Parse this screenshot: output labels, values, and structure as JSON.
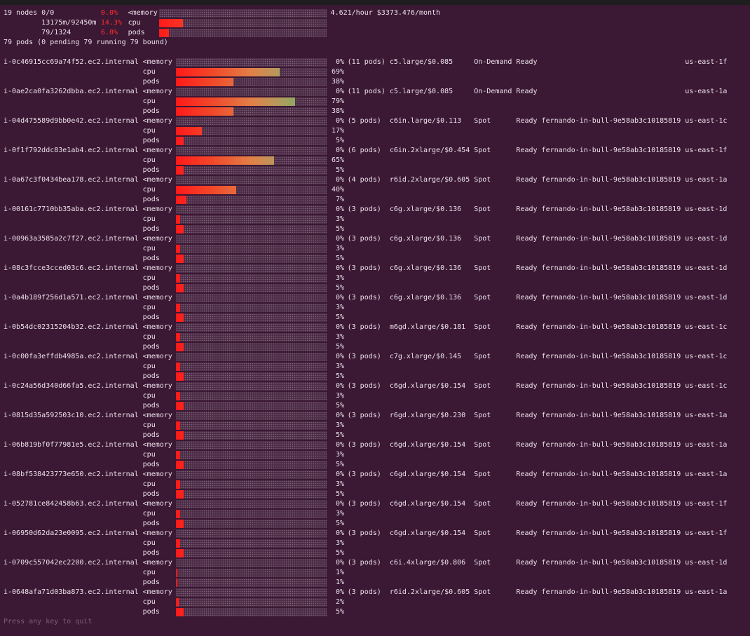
{
  "summary": {
    "nodes": "19 nodes 0/0",
    "memory_pct": "0.0%",
    "memory_label": "<memory",
    "cost": "4.621/hour $3373.476/month",
    "cpu_usage": "13175m/92450m",
    "cpu_pct": "14.3%",
    "cpu_label": "cpu",
    "pods_usage": "79/1324",
    "pods_pct": "6.0%",
    "pods_label": "pods",
    "pods_status": "79 pods (0 pending 79 running 79 bound)"
  },
  "labels": [
    "<memory",
    "cpu",
    "pods"
  ],
  "nodes": [
    {
      "name": "i-0c46915cc69a74f52.ec2.internal",
      "memory": "0%",
      "cpu": "69%",
      "pods": "38%",
      "pod_count": "(11 pods)",
      "instance": "c5.large/$0.085",
      "capacity": "On-Demand",
      "status": "Ready",
      "zone": "us-east-1f"
    },
    {
      "name": "i-0ae2ca0fa3262dbba.ec2.internal",
      "memory": "0%",
      "cpu": "79%",
      "pods": "38%",
      "pod_count": "(11 pods)",
      "instance": "c5.large/$0.085",
      "capacity": "On-Demand",
      "status": "Ready",
      "zone": "us-east-1a"
    },
    {
      "name": "i-04d475589d9bb0e42.ec2.internal",
      "memory": "0%",
      "cpu": "17%",
      "pods": "5%",
      "pod_count": "(5 pods)",
      "instance": "c6in.large/$0.113",
      "capacity": "Spot",
      "status": "Ready",
      "nodepool": "fernando-in-bull-9e58ab3c10185819",
      "zone": "us-east-1c"
    },
    {
      "name": "i-0f1f792ddc83e1ab4.ec2.internal",
      "memory": "0%",
      "cpu": "65%",
      "pods": "5%",
      "pod_count": "(6 pods)",
      "instance": "c6in.2xlarge/$0.454",
      "capacity": "Spot",
      "status": "Ready",
      "nodepool": "fernando-in-bull-9e58ab3c10185819",
      "zone": "us-east-1f"
    },
    {
      "name": "i-0a67c3f0434bea178.ec2.internal",
      "memory": "0%",
      "cpu": "40%",
      "pods": "7%",
      "pod_count": "(4 pods)",
      "instance": "r6id.2xlarge/$0.605",
      "capacity": "Spot",
      "status": "Ready",
      "nodepool": "fernando-in-bull-9e58ab3c10185819",
      "zone": "us-east-1a"
    },
    {
      "name": "i-00161c7710bb35aba.ec2.internal",
      "memory": "0%",
      "cpu": "3%",
      "pods": "5%",
      "pod_count": "(3 pods)",
      "instance": "c6g.xlarge/$0.136",
      "capacity": "Spot",
      "status": "Ready",
      "nodepool": "fernando-in-bull-9e58ab3c10185819",
      "zone": "us-east-1d"
    },
    {
      "name": "i-00963a3585a2c7f27.ec2.internal",
      "memory": "0%",
      "cpu": "3%",
      "pods": "5%",
      "pod_count": "(3 pods)",
      "instance": "c6g.xlarge/$0.136",
      "capacity": "Spot",
      "status": "Ready",
      "nodepool": "fernando-in-bull-9e58ab3c10185819",
      "zone": "us-east-1d"
    },
    {
      "name": "i-08c3fcce3cced03c6.ec2.internal",
      "memory": "0%",
      "cpu": "3%",
      "pods": "5%",
      "pod_count": "(3 pods)",
      "instance": "c6g.xlarge/$0.136",
      "capacity": "Spot",
      "status": "Ready",
      "nodepool": "fernando-in-bull-9e58ab3c10185819",
      "zone": "us-east-1d"
    },
    {
      "name": "i-0a4b189f256d1a571.ec2.internal",
      "memory": "0%",
      "cpu": "3%",
      "pods": "5%",
      "pod_count": "(3 pods)",
      "instance": "c6g.xlarge/$0.136",
      "capacity": "Spot",
      "status": "Ready",
      "nodepool": "fernando-in-bull-9e58ab3c10185819",
      "zone": "us-east-1d"
    },
    {
      "name": "i-0b54dc02315204b32.ec2.internal",
      "memory": "0%",
      "cpu": "3%",
      "pods": "5%",
      "pod_count": "(3 pods)",
      "instance": "m6gd.xlarge/$0.181",
      "capacity": "Spot",
      "status": "Ready",
      "nodepool": "fernando-in-bull-9e58ab3c10185819",
      "zone": "us-east-1c"
    },
    {
      "name": "i-0c00fa3effdb4985a.ec2.internal",
      "memory": "0%",
      "cpu": "3%",
      "pods": "5%",
      "pod_count": "(3 pods)",
      "instance": "c7g.xlarge/$0.145",
      "capacity": "Spot",
      "status": "Ready",
      "nodepool": "fernando-in-bull-9e58ab3c10185819",
      "zone": "us-east-1c"
    },
    {
      "name": "i-0c24a56d340d66fa5.ec2.internal",
      "memory": "0%",
      "cpu": "3%",
      "pods": "5%",
      "pod_count": "(3 pods)",
      "instance": "c6gd.xlarge/$0.154",
      "capacity": "Spot",
      "status": "Ready",
      "nodepool": "fernando-in-bull-9e58ab3c10185819",
      "zone": "us-east-1c"
    },
    {
      "name": "i-0815d35a592503c10.ec2.internal",
      "memory": "0%",
      "cpu": "3%",
      "pods": "5%",
      "pod_count": "(3 pods)",
      "instance": "r6gd.xlarge/$0.230",
      "capacity": "Spot",
      "status": "Ready",
      "nodepool": "fernando-in-bull-9e58ab3c10185819",
      "zone": "us-east-1a"
    },
    {
      "name": "i-06b819bf0f77981e5.ec2.internal",
      "memory": "0%",
      "cpu": "3%",
      "pods": "5%",
      "pod_count": "(3 pods)",
      "instance": "c6gd.xlarge/$0.154",
      "capacity": "Spot",
      "status": "Ready",
      "nodepool": "fernando-in-bull-9e58ab3c10185819",
      "zone": "us-east-1a"
    },
    {
      "name": "i-08bf538423773e650.ec2.internal",
      "memory": "0%",
      "cpu": "3%",
      "pods": "5%",
      "pod_count": "(3 pods)",
      "instance": "c6gd.xlarge/$0.154",
      "capacity": "Spot",
      "status": "Ready",
      "nodepool": "fernando-in-bull-9e58ab3c10185819",
      "zone": "us-east-1a"
    },
    {
      "name": "i-052781ce842458b63.ec2.internal",
      "memory": "0%",
      "cpu": "3%",
      "pods": "5%",
      "pod_count": "(3 pods)",
      "instance": "c6gd.xlarge/$0.154",
      "capacity": "Spot",
      "status": "Ready",
      "nodepool": "fernando-in-bull-9e58ab3c10185819",
      "zone": "us-east-1f"
    },
    {
      "name": "i-06950d62da23e0095.ec2.internal",
      "memory": "0%",
      "cpu": "3%",
      "pods": "5%",
      "pod_count": "(3 pods)",
      "instance": "c6gd.xlarge/$0.154",
      "capacity": "Spot",
      "status": "Ready",
      "nodepool": "fernando-in-bull-9e58ab3c10185819",
      "zone": "us-east-1f"
    },
    {
      "name": "i-0709c557042ec2200.ec2.internal",
      "memory": "0%",
      "cpu": "1%",
      "pods": "1%",
      "pod_count": "(3 pods)",
      "instance": "c6i.4xlarge/$0.806",
      "capacity": "Spot",
      "status": "Ready",
      "nodepool": "fernando-in-bull-9e58ab3c10185819",
      "zone": "us-east-1d"
    },
    {
      "name": "i-0648afa71d03ba873.ec2.internal",
      "memory": "0%",
      "cpu": "2%",
      "pods": "5%",
      "pod_count": "(3 pods)",
      "instance": "r6id.2xlarge/$0.605",
      "capacity": "Spot",
      "status": "Ready",
      "nodepool": "fernando-in-bull-9e58ab3c10185819",
      "zone": "us-east-1a"
    }
  ],
  "footer": "Press any key to quit"
}
